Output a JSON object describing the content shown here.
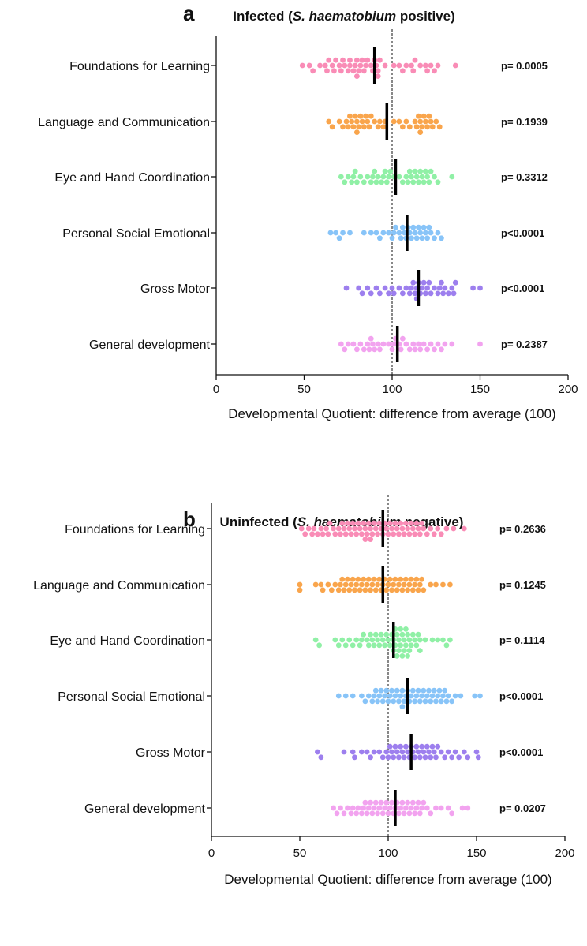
{
  "colors": [
    "#f98cb6",
    "#f9a54c",
    "#90f0a6",
    "#88c4f8",
    "#9d7fee",
    "#f2a3ef"
  ],
  "categories": [
    "Foundations for Learning",
    "Language and Communication",
    "Eye and Hand Coordination",
    "Personal Social Emotional",
    "Gross Motor",
    "General development"
  ],
  "chart_data": [
    {
      "type": "scatter",
      "panel_letter": "a",
      "title_pre": "Infected (",
      "title_italic": "S. haematobium",
      "title_post": " positive)",
      "xlabel": "Developmental Quotient: difference from average (100)",
      "xlim": [
        0,
        200
      ],
      "xticks": [
        "0",
        "50",
        "100",
        "150",
        "200"
      ],
      "reference_line": 100,
      "p_values": [
        "p= 0.0005",
        "p= 0.1939",
        "p= 0.3312",
        "p<0.0001",
        "p<0.0001",
        "p= 0.2387"
      ],
      "medians": [
        90,
        97,
        102,
        108.5,
        115,
        103
      ],
      "series": [
        [
          49,
          53,
          55,
          59,
          62,
          63,
          64,
          66,
          67,
          68,
          70,
          71,
          72,
          73,
          75,
          76,
          76,
          78,
          79,
          80,
          80,
          81,
          82,
          83,
          84,
          85,
          86,
          88,
          89,
          90,
          91,
          92,
          92,
          93,
          96,
          101,
          104,
          106,
          108,
          111,
          112,
          113,
          116,
          119,
          120,
          122,
          124,
          126,
          136
        ],
        [
          64,
          66,
          70,
          72,
          74,
          75,
          76,
          77,
          78,
          79,
          80,
          80,
          81,
          82,
          83,
          84,
          85,
          86,
          87,
          88,
          90,
          92,
          93,
          95,
          96,
          101,
          104,
          106,
          108,
          110,
          113,
          114,
          115,
          116,
          116,
          117,
          118,
          119,
          120,
          121,
          122,
          123,
          125,
          127
        ],
        [
          71,
          73,
          75,
          77,
          78,
          79,
          80,
          82,
          84,
          86,
          88,
          89,
          90,
          91,
          92,
          94,
          95,
          96,
          97,
          98,
          99,
          101,
          104,
          106,
          108,
          109,
          110,
          111,
          112,
          113,
          114,
          115,
          116,
          117,
          118,
          119,
          120,
          121,
          122,
          124,
          126,
          134
        ],
        [
          65,
          68,
          70,
          72,
          76,
          84,
          88,
          91,
          93,
          95,
          98,
          100,
          101,
          102,
          104,
          105,
          106,
          107,
          108,
          109,
          110,
          111,
          112,
          113,
          114,
          115,
          116,
          117,
          118,
          119,
          120,
          121,
          122,
          124,
          126,
          128
        ],
        [
          74,
          81,
          83,
          86,
          88,
          91,
          93,
          96,
          98,
          100,
          101,
          104,
          106,
          108,
          110,
          111,
          112,
          113,
          114,
          114,
          115,
          116,
          117,
          118,
          119,
          120,
          121,
          122,
          124,
          126,
          127,
          128,
          129,
          130,
          132,
          134,
          135,
          136,
          146,
          150
        ],
        [
          71,
          73,
          75,
          78,
          80,
          82,
          84,
          86,
          87,
          88,
          89,
          90,
          92,
          93,
          95,
          98,
          100,
          101,
          102,
          104,
          105,
          106,
          108,
          110,
          112,
          113,
          115,
          116,
          118,
          120,
          122,
          124,
          126,
          128,
          130,
          134,
          150
        ]
      ]
    },
    {
      "type": "scatter",
      "panel_letter": "b",
      "title_pre": "Uninfected (",
      "title_italic": "S. haematobium",
      "title_post": " negative)",
      "xlabel": "Developmental Quotient: difference from average (100)",
      "xlim": [
        0,
        200
      ],
      "xticks": [
        "0",
        "50",
        "100",
        "150",
        "200"
      ],
      "reference_line": 100,
      "p_values": [
        "p= 0.2636",
        "p= 0.1245",
        "p= 0.1114",
        "p<0.0001",
        "p<0.0001",
        "p= 0.0207"
      ],
      "medians": [
        97,
        97,
        103,
        111,
        113,
        104
      ],
      "series": [
        [
          51,
          53,
          55,
          57,
          58,
          60,
          62,
          63,
          65,
          66,
          67,
          69,
          70,
          72,
          73,
          74,
          75,
          76,
          77,
          78,
          79,
          80,
          81,
          82,
          83,
          84,
          85,
          86,
          87,
          87,
          88,
          89,
          90,
          90,
          91,
          92,
          93,
          94,
          95,
          96,
          97,
          98,
          99,
          100,
          101,
          102,
          103,
          104,
          105,
          106,
          107,
          108,
          109,
          110,
          111,
          112,
          113,
          114,
          115,
          116,
          117,
          118,
          119,
          120,
          122,
          124,
          126,
          128,
          130,
          133,
          137,
          143
        ],
        [
          50,
          50,
          59,
          62,
          63,
          66,
          68,
          70,
          72,
          73,
          74,
          75,
          76,
          77,
          78,
          79,
          80,
          81,
          82,
          83,
          84,
          85,
          86,
          87,
          88,
          89,
          90,
          91,
          92,
          93,
          94,
          95,
          96,
          97,
          98,
          99,
          100,
          101,
          102,
          103,
          104,
          105,
          106,
          107,
          108,
          109,
          110,
          111,
          112,
          113,
          114,
          115,
          116,
          117,
          118,
          119,
          120,
          124,
          127,
          131,
          135
        ],
        [
          59,
          61,
          70,
          72,
          74,
          76,
          78,
          80,
          82,
          84,
          85,
          86,
          88,
          89,
          90,
          91,
          92,
          93,
          94,
          95,
          96,
          97,
          98,
          99,
          100,
          101,
          102,
          103,
          103,
          104,
          104,
          105,
          105,
          106,
          106,
          107,
          107,
          108,
          108,
          109,
          109,
          110,
          110,
          111,
          111,
          112,
          112,
          113,
          114,
          115,
          116,
          117,
          118,
          118,
          121,
          125,
          128,
          131,
          133,
          135
        ],
        [
          72,
          76,
          80,
          85,
          87,
          89,
          91,
          92,
          93,
          94,
          95,
          96,
          97,
          98,
          99,
          100,
          101,
          102,
          103,
          104,
          105,
          106,
          107,
          108,
          108,
          109,
          110,
          111,
          112,
          113,
          114,
          115,
          116,
          117,
          118,
          119,
          120,
          121,
          122,
          123,
          124,
          125,
          126,
          127,
          128,
          129,
          130,
          131,
          132,
          133,
          134,
          136,
          138,
          141,
          149,
          152
        ],
        [
          60,
          62,
          75,
          80,
          81,
          85,
          88,
          90,
          92,
          95,
          97,
          99,
          100,
          101,
          102,
          103,
          104,
          105,
          106,
          107,
          108,
          109,
          110,
          111,
          112,
          113,
          114,
          115,
          116,
          117,
          118,
          119,
          120,
          121,
          122,
          123,
          124,
          125,
          126,
          127,
          128,
          130,
          132,
          134,
          136,
          138,
          140,
          143,
          145,
          150,
          151
        ],
        [
          69,
          71,
          73,
          75,
          77,
          79,
          80,
          82,
          83,
          85,
          86,
          87,
          88,
          89,
          90,
          91,
          92,
          93,
          94,
          95,
          96,
          97,
          98,
          99,
          100,
          101,
          102,
          103,
          104,
          105,
          106,
          107,
          108,
          109,
          110,
          111,
          112,
          113,
          114,
          115,
          116,
          117,
          118,
          119,
          120,
          122,
          124,
          127,
          130,
          134,
          136,
          142,
          145
        ]
      ]
    }
  ]
}
